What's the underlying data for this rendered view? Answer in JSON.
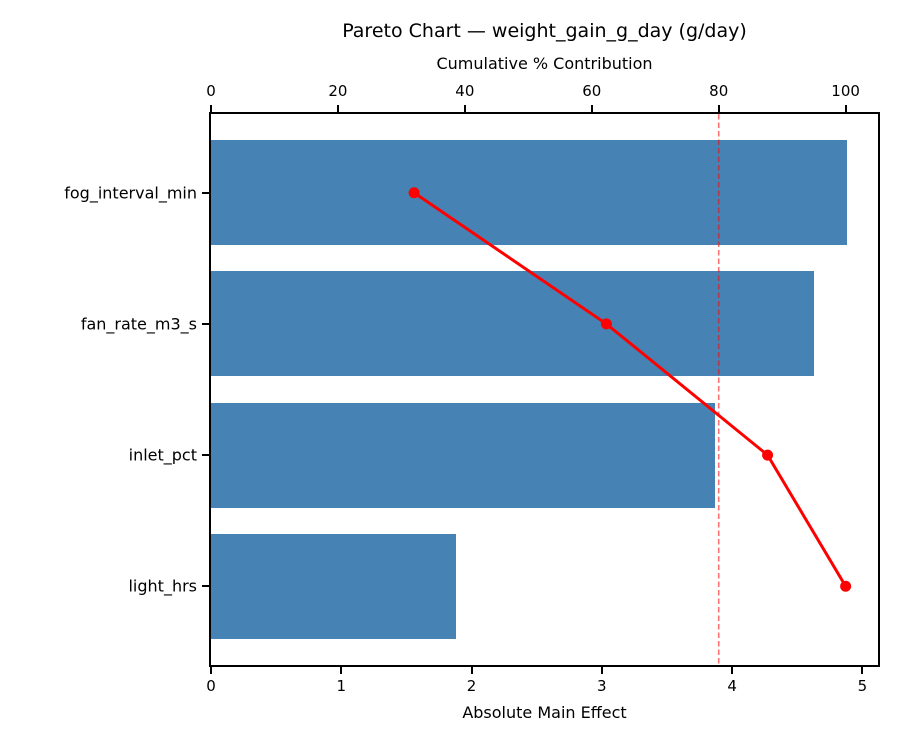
{
  "chart_data": {
    "type": "bar",
    "subtype": "pareto",
    "orientation": "horizontal",
    "title": "Pareto Chart — weight_gain_g_day (g/day)",
    "top_axis_label": "Cumulative % Contribution",
    "bottom_axis_label": "Absolute Main Effect",
    "categories": [
      "fog_interval_min",
      "fan_rate_m3_s",
      "inlet_pct",
      "light_hrs"
    ],
    "series": [
      {
        "name": "Absolute Main Effect",
        "type": "bar",
        "values": [
          4.88,
          4.63,
          3.87,
          1.88
        ]
      },
      {
        "name": "Cumulative % Contribution",
        "type": "line",
        "values": [
          32.0,
          62.3,
          87.7,
          100.0
        ]
      }
    ],
    "threshold_line": {
      "value": 80,
      "style": "dashed",
      "axis": "top"
    },
    "bottom_ticks": [
      0,
      1,
      2,
      3,
      4,
      5
    ],
    "top_ticks": [
      0,
      20,
      40,
      60,
      80,
      100
    ],
    "bottom_xlim": [
      0,
      5.12
    ],
    "top_xlim": [
      0,
      105.1
    ],
    "bar_height_frac": 0.8,
    "grid": false,
    "legend": "none",
    "colors": {
      "bar": "#4682b4",
      "line": "#ff0000",
      "marker": "#ff0000",
      "threshold": "#ff0000",
      "threshold_opacity": 0.55,
      "text": "#000000",
      "spine": "#000000"
    }
  }
}
